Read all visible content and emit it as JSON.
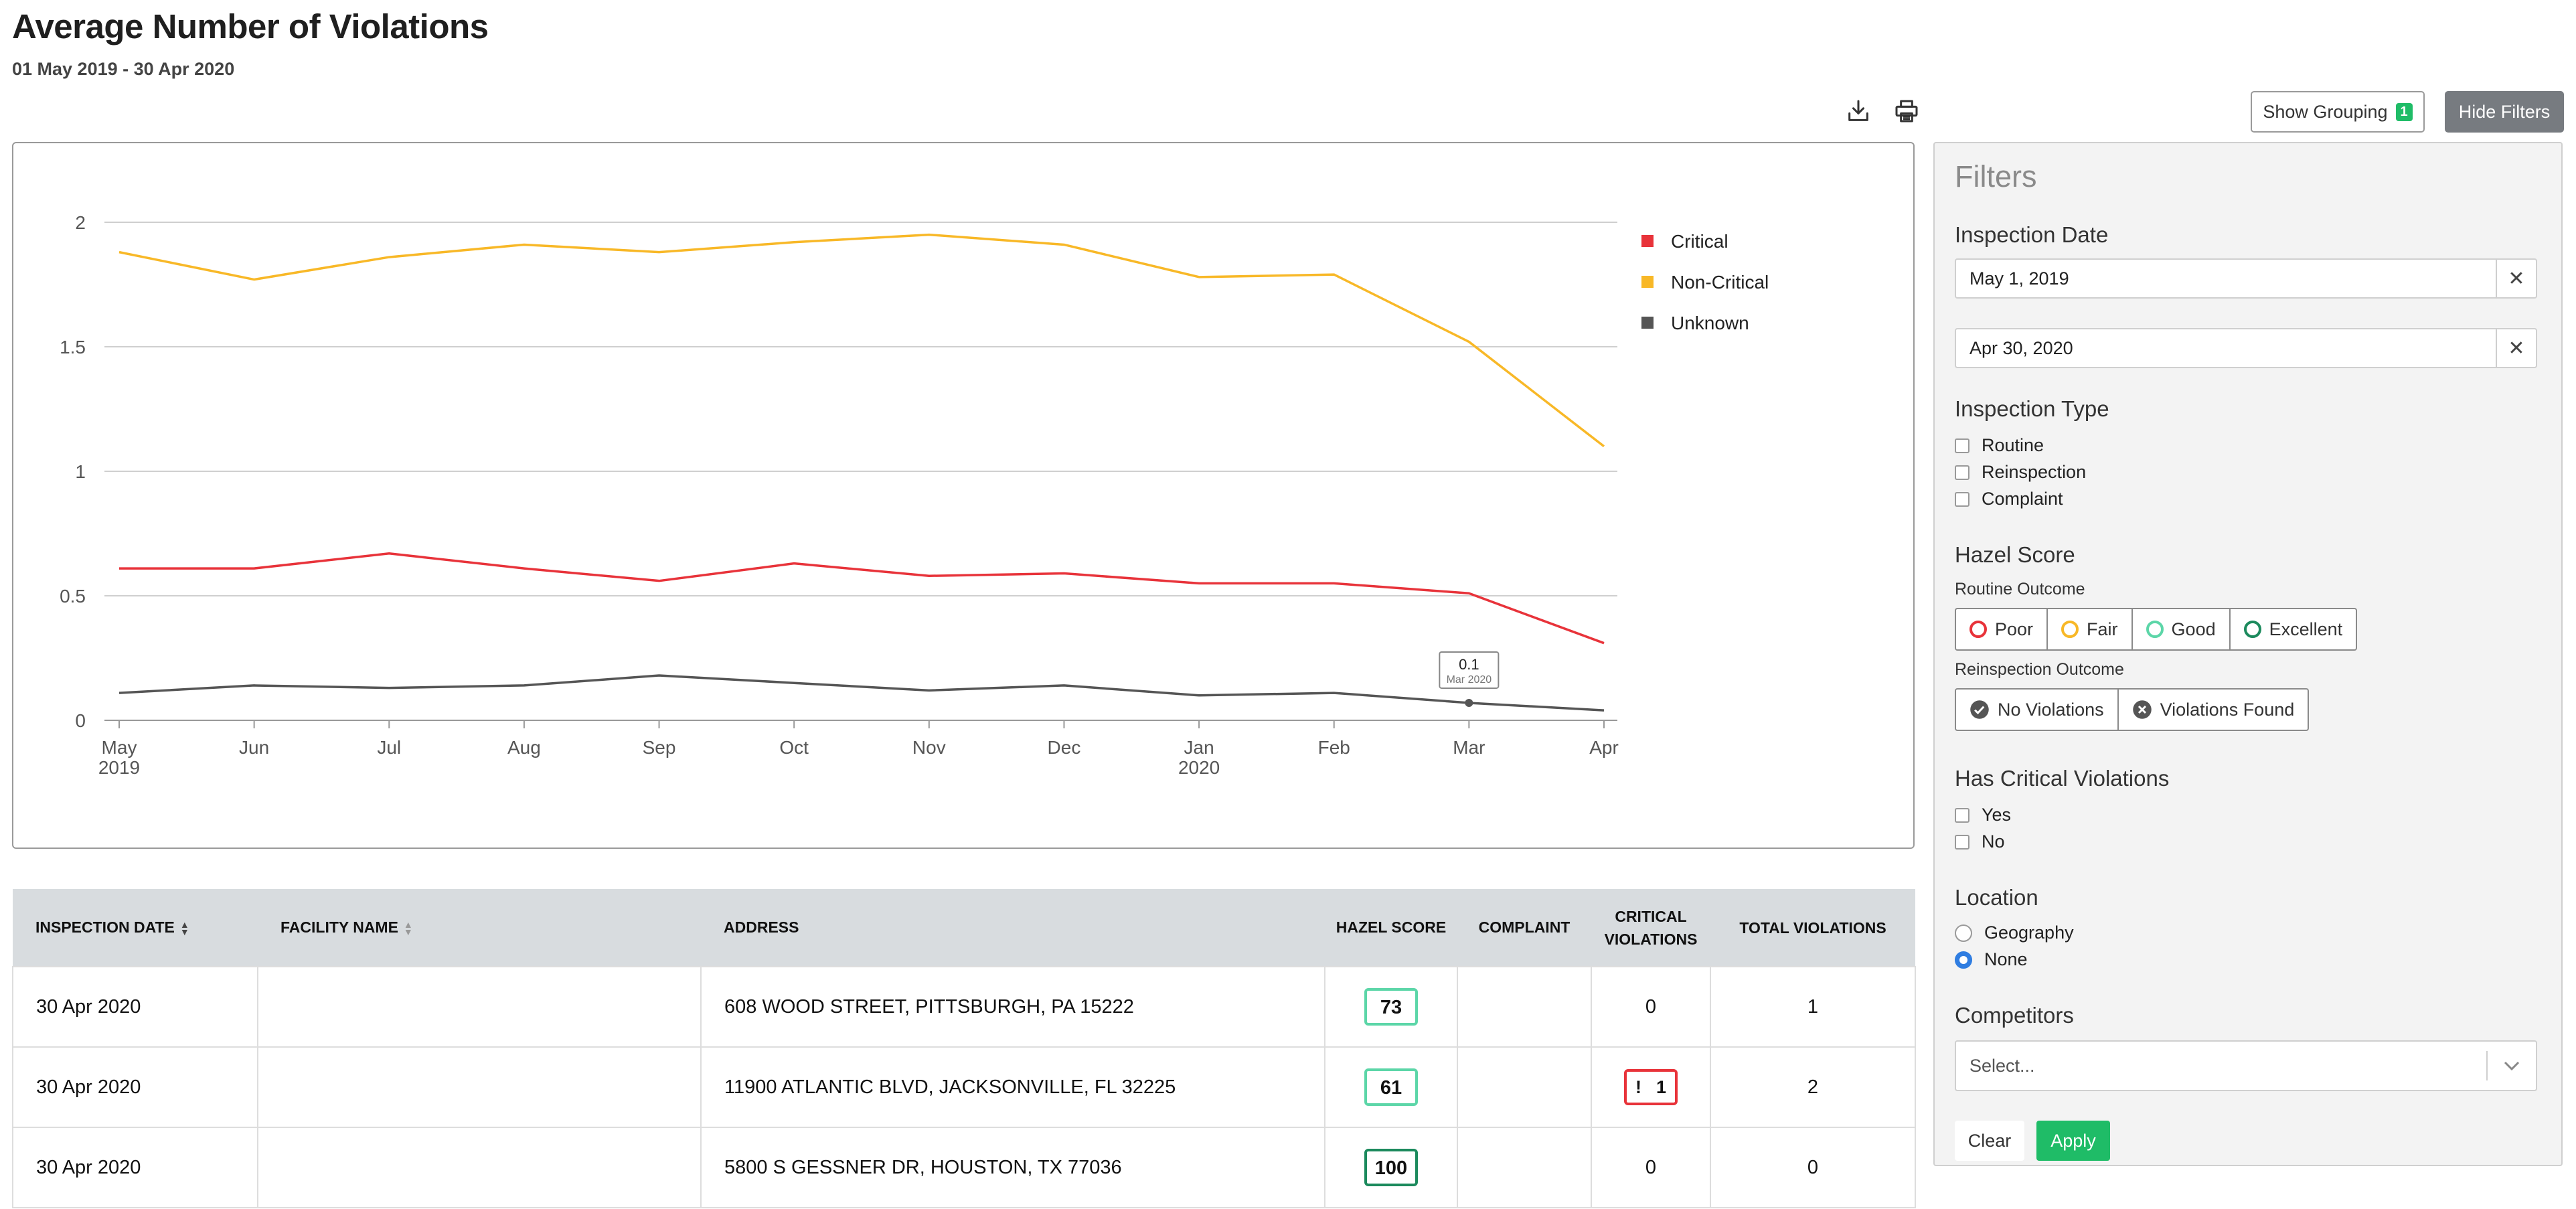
{
  "header": {
    "title": "Average Number of Violations",
    "date_range": "01 May 2019 - 30 Apr 2020"
  },
  "toolbar": {
    "download_icon": "download-icon",
    "print_icon": "printer-icon",
    "show_grouping_label": "Show Grouping",
    "grouping_count": "1",
    "hide_filters_label": "Hide Filters"
  },
  "chart_data": {
    "type": "line",
    "x_months": [
      "May",
      "Jun",
      "Jul",
      "Aug",
      "Sep",
      "Oct",
      "Nov",
      "Dec",
      "Jan",
      "Feb",
      "Mar",
      "Apr"
    ],
    "x_years": [
      "2019",
      "",
      "",
      "",
      "",
      "",
      "",
      "",
      "2020",
      "",
      "",
      ""
    ],
    "ylim": [
      0,
      2
    ],
    "yticks": [
      "0",
      "0.5",
      "1",
      "1.5",
      "2"
    ],
    "grid": true,
    "legend_position": "top-right",
    "series": [
      {
        "name": "Critical",
        "color": "#e8333a",
        "values": [
          0.61,
          0.61,
          0.67,
          0.61,
          0.56,
          0.63,
          0.58,
          0.59,
          0.55,
          0.55,
          0.51,
          0.31
        ]
      },
      {
        "name": "Non-Critical",
        "color": "#f8b827",
        "values": [
          1.88,
          1.77,
          1.86,
          1.91,
          1.88,
          1.92,
          1.95,
          1.91,
          1.78,
          1.79,
          1.52,
          1.1
        ]
      },
      {
        "name": "Unknown",
        "color": "#555555",
        "values": [
          0.11,
          0.14,
          0.13,
          0.14,
          0.18,
          0.15,
          0.12,
          0.14,
          0.1,
          0.11,
          0.07,
          0.04
        ]
      }
    ],
    "tooltip": {
      "value": "0.1",
      "label": "Mar 2020"
    }
  },
  "table": {
    "columns": [
      "Inspection Date",
      "Facility Name",
      "Address",
      "Hazel Score",
      "Complaint",
      "Critical Violations",
      "Total Violations"
    ],
    "rows": [
      {
        "date": "30 Apr 2020",
        "facility": "",
        "address": "608 WOOD STREET, PITTSBURGH, PA 15222",
        "score": "73",
        "complaint": "",
        "critical": "0",
        "total": "1"
      },
      {
        "date": "30 Apr 2020",
        "facility": "",
        "address": "11900 ATLANTIC BLVD, JACKSONVILLE, FL 32225",
        "score": "61",
        "complaint": "",
        "critical": "1",
        "critical_mark": "!",
        "total": "2"
      },
      {
        "date": "30 Apr 2020",
        "facility": "",
        "address": "5800 S GESSNER DR, HOUSTON, TX 77036",
        "score": "100",
        "complaint": "",
        "critical": "0",
        "total": "0"
      }
    ]
  },
  "filters": {
    "title": "Filters",
    "inspection_date": {
      "heading": "Inspection Date",
      "start": "May 1, 2019",
      "end": "Apr 30, 2020",
      "clear_glyph": "✕"
    },
    "inspection_type": {
      "heading": "Inspection Type",
      "options": [
        "Routine",
        "Reinspection",
        "Complaint"
      ]
    },
    "hazel_score": {
      "heading": "Hazel Score",
      "routine_label": "Routine Outcome",
      "routine_options": [
        {
          "label": "Poor",
          "color": "#e8333a"
        },
        {
          "label": "Fair",
          "color": "#f8b827"
        },
        {
          "label": "Good",
          "color": "#5cd6a8"
        },
        {
          "label": "Excellent",
          "color": "#1c8a5d"
        }
      ],
      "reinspection_label": "Reinspection Outcome",
      "reinspection_options": [
        "No Violations",
        "Violations Found"
      ]
    },
    "critical": {
      "heading": "Has Critical Violations",
      "options": [
        "Yes",
        "No"
      ]
    },
    "location": {
      "heading": "Location",
      "options": [
        "Geography",
        "None"
      ],
      "selected": "None"
    },
    "competitors": {
      "heading": "Competitors",
      "placeholder": "Select..."
    },
    "clear_label": "Clear",
    "apply_label": "Apply"
  }
}
